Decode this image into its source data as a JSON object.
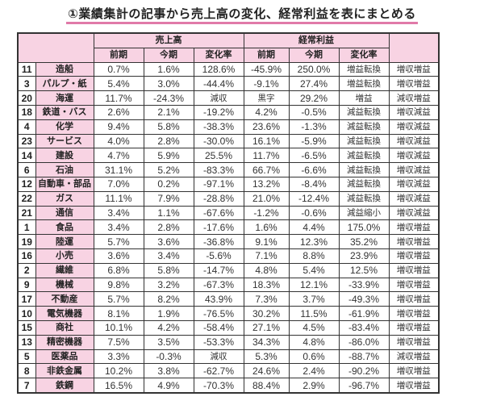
{
  "title": "①業績集計の記事から売上高の変化、経常利益を表にまとめる",
  "colors": {
    "header_pink": "#f8d3e3",
    "underline_pink": "#e07aa8",
    "border": "#333333"
  },
  "header": {
    "group_sales": "売上高",
    "group_profit": "経常利益",
    "sub": {
      "prev": "前期",
      "curr": "今期",
      "change": "変化率"
    }
  },
  "rows": [
    {
      "rank": "11",
      "industry": "造船",
      "s_prev": "0.7%",
      "s_curr": "1.6%",
      "s_change": "128.6%",
      "p_prev": "-45.9%",
      "p_curr": "250.0%",
      "p_change": "増益転換",
      "summary": "増収増益"
    },
    {
      "rank": "3",
      "industry": "パルプ・紙",
      "s_prev": "5.4%",
      "s_curr": "3.0%",
      "s_change": "-44.4%",
      "p_prev": "-9.1%",
      "p_curr": "27.4%",
      "p_change": "増益転換",
      "summary": "増収増益"
    },
    {
      "rank": "20",
      "industry": "海運",
      "s_prev": "11.7%",
      "s_curr": "-24.3%",
      "s_change": "減収",
      "p_prev": "黒字",
      "p_curr": "29.2%",
      "p_change": "増益",
      "summary": "減収増益"
    },
    {
      "rank": "18",
      "industry": "鉄道・バス",
      "s_prev": "2.6%",
      "s_curr": "2.1%",
      "s_change": "-19.2%",
      "p_prev": "4.2%",
      "p_curr": "-0.5%",
      "p_change": "減益転換",
      "summary": "増収減益"
    },
    {
      "rank": "4",
      "industry": "化学",
      "s_prev": "9.4%",
      "s_curr": "5.8%",
      "s_change": "-38.3%",
      "p_prev": "23.6%",
      "p_curr": "-1.3%",
      "p_change": "減益転換",
      "summary": "増収減益"
    },
    {
      "rank": "23",
      "industry": "サービス",
      "s_prev": "4.0%",
      "s_curr": "2.8%",
      "s_change": "-30.0%",
      "p_prev": "16.1%",
      "p_curr": "-5.9%",
      "p_change": "減益転換",
      "summary": "増収減益"
    },
    {
      "rank": "14",
      "industry": "建設",
      "s_prev": "4.7%",
      "s_curr": "5.9%",
      "s_change": "25.5%",
      "p_prev": "11.7%",
      "p_curr": "-6.5%",
      "p_change": "減益転換",
      "summary": "増収減益"
    },
    {
      "rank": "6",
      "industry": "石油",
      "s_prev": "31.1%",
      "s_curr": "5.2%",
      "s_change": "-83.3%",
      "p_prev": "66.7%",
      "p_curr": "-6.6%",
      "p_change": "減益転換",
      "summary": "増収減益"
    },
    {
      "rank": "12",
      "industry": "自動車・部品",
      "s_prev": "7.0%",
      "s_curr": "0.2%",
      "s_change": "-97.1%",
      "p_prev": "13.2%",
      "p_curr": "-8.4%",
      "p_change": "減益転換",
      "summary": "増収減益"
    },
    {
      "rank": "22",
      "industry": "ガス",
      "s_prev": "11.1%",
      "s_curr": "7.9%",
      "s_change": "-28.8%",
      "p_prev": "21.0%",
      "p_curr": "-12.4%",
      "p_change": "減益転換",
      "summary": "増収減益"
    },
    {
      "rank": "21",
      "industry": "通信",
      "s_prev": "3.4%",
      "s_curr": "1.1%",
      "s_change": "-67.6%",
      "p_prev": "-1.2%",
      "p_curr": "-0.6%",
      "p_change": "減益縮小",
      "summary": "増収減益"
    },
    {
      "rank": "1",
      "industry": "食品",
      "s_prev": "3.4%",
      "s_curr": "2.8%",
      "s_change": "-17.6%",
      "p_prev": "1.6%",
      "p_curr": "4.4%",
      "p_change": "175.0%",
      "summary": "増収増益"
    },
    {
      "rank": "19",
      "industry": "陸運",
      "s_prev": "5.7%",
      "s_curr": "3.6%",
      "s_change": "-36.8%",
      "p_prev": "9.1%",
      "p_curr": "12.3%",
      "p_change": "35.2%",
      "summary": "増収増益"
    },
    {
      "rank": "16",
      "industry": "小売",
      "s_prev": "3.6%",
      "s_curr": "3.4%",
      "s_change": "-5.6%",
      "p_prev": "7.1%",
      "p_curr": "8.8%",
      "p_change": "23.9%",
      "summary": "増収増益"
    },
    {
      "rank": "2",
      "industry": "繊維",
      "s_prev": "6.8%",
      "s_curr": "5.8%",
      "s_change": "-14.7%",
      "p_prev": "4.8%",
      "p_curr": "5.4%",
      "p_change": "12.5%",
      "summary": "増収増益"
    },
    {
      "rank": "9",
      "industry": "機械",
      "s_prev": "9.8%",
      "s_curr": "3.2%",
      "s_change": "-67.3%",
      "p_prev": "18.3%",
      "p_curr": "12.1%",
      "p_change": "-33.9%",
      "summary": "増収増益"
    },
    {
      "rank": "17",
      "industry": "不動産",
      "s_prev": "5.7%",
      "s_curr": "8.2%",
      "s_change": "43.9%",
      "p_prev": "7.3%",
      "p_curr": "3.7%",
      "p_change": "-49.3%",
      "summary": "増収増益"
    },
    {
      "rank": "10",
      "industry": "電気機器",
      "s_prev": "8.1%",
      "s_curr": "1.9%",
      "s_change": "-76.5%",
      "p_prev": "30.2%",
      "p_curr": "11.5%",
      "p_change": "-61.9%",
      "summary": "増収増益"
    },
    {
      "rank": "15",
      "industry": "商社",
      "s_prev": "10.1%",
      "s_curr": "4.2%",
      "s_change": "-58.4%",
      "p_prev": "27.1%",
      "p_curr": "4.5%",
      "p_change": "-83.4%",
      "summary": "増収増益"
    },
    {
      "rank": "13",
      "industry": "精密機器",
      "s_prev": "7.5%",
      "s_curr": "3.5%",
      "s_change": "-53.3%",
      "p_prev": "34.3%",
      "p_curr": "4.8%",
      "p_change": "-86.0%",
      "summary": "増収増益"
    },
    {
      "rank": "5",
      "industry": "医薬品",
      "s_prev": "3.3%",
      "s_curr": "-0.3%",
      "s_change": "減収",
      "p_prev": "5.3%",
      "p_curr": "0.6%",
      "p_change": "-88.7%",
      "summary": "減収増益"
    },
    {
      "rank": "8",
      "industry": "非鉄金属",
      "s_prev": "10.2%",
      "s_curr": "3.8%",
      "s_change": "-62.7%",
      "p_prev": "24.6%",
      "p_curr": "2.4%",
      "p_change": "-90.2%",
      "summary": "増収増益"
    },
    {
      "rank": "7",
      "industry": "鉄鋼",
      "s_prev": "16.5%",
      "s_curr": "4.9%",
      "s_change": "-70.3%",
      "p_prev": "88.4%",
      "p_curr": "2.9%",
      "p_change": "-96.7%",
      "summary": "増収増益"
    }
  ]
}
